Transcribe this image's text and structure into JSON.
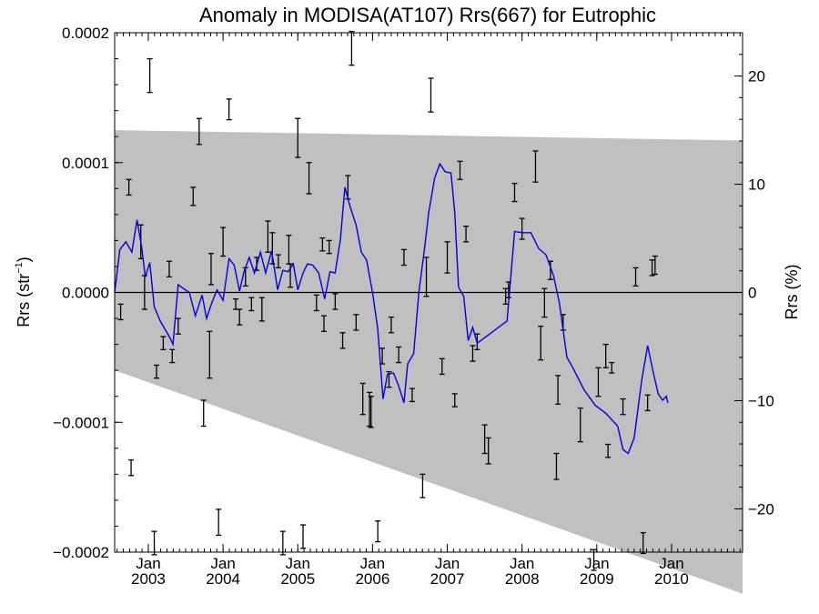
{
  "chart_data": {
    "type": "line",
    "title": "Anomaly in MODISA(AT107) Rrs(667) for Eutrophic",
    "ylabel_left": "Rrs (str⁻¹)",
    "ylabel_right": "Rrs (%)",
    "xlim": [
      2002.55,
      2010.95
    ],
    "ylim_left": [
      -0.0002,
      0.0002
    ],
    "ylim_right": [
      -24,
      24
    ],
    "left_ticks": [
      {
        "value": 0.0002,
        "label": "0.0002"
      },
      {
        "value": 0.0001,
        "label": "0.0001"
      },
      {
        "value": 0.0,
        "label": "0.0000"
      },
      {
        "value": -0.0001,
        "label": "−0.0001"
      },
      {
        "value": -0.0002,
        "label": "−0.0002"
      }
    ],
    "right_ticks": [
      {
        "value": 20,
        "label": "20"
      },
      {
        "value": 10,
        "label": "10"
      },
      {
        "value": 0,
        "label": "0"
      },
      {
        "value": -10,
        "label": "−10"
      },
      {
        "value": -20,
        "label": "−20"
      }
    ],
    "x_ticks": [
      {
        "value": 2003.0,
        "month": "Jan",
        "year": "2003"
      },
      {
        "value": 2004.0,
        "month": "Jan",
        "year": "2004"
      },
      {
        "value": 2005.0,
        "month": "Jan",
        "year": "2005"
      },
      {
        "value": 2006.0,
        "month": "Jan",
        "year": "2006"
      },
      {
        "value": 2007.0,
        "month": "Jan",
        "year": "2007"
      },
      {
        "value": 2008.0,
        "month": "Jan",
        "year": "2008"
      },
      {
        "value": 2009.0,
        "month": "Jan",
        "year": "2009"
      },
      {
        "value": 2010.0,
        "month": "Jan",
        "year": "2010"
      }
    ],
    "band": {
      "upper": [
        [
          2002.55,
          0.000125
        ],
        [
          2010.95,
          0.000117
        ]
      ],
      "lower": [
        [
          2002.55,
          -6e-05
        ],
        [
          2010.95,
          -0.000232
        ]
      ],
      "color": "#c0c0c0"
    },
    "line_color": "#0000dd",
    "line": [
      [
        2002.55,
        0.0
      ],
      [
        2002.62,
        3.3e-05
      ],
      [
        2002.7,
        3.9e-05
      ],
      [
        2002.78,
        3.1e-05
      ],
      [
        2002.85,
        5.6e-05
      ],
      [
        2002.91,
        3.5e-05
      ],
      [
        2002.96,
        1.2e-05
      ],
      [
        2003.02,
        2.3e-05
      ],
      [
        2003.08,
        -1.1e-05
      ],
      [
        2003.16,
        -2.2e-05
      ],
      [
        2003.22,
        -2.8e-05
      ],
      [
        2003.28,
        -3.4e-05
      ],
      [
        2003.33,
        -4e-05
      ],
      [
        2003.4,
        6e-06
      ],
      [
        2003.47,
        3e-06
      ],
      [
        2003.55,
        0.0
      ],
      [
        2003.63,
        -1.8e-05
      ],
      [
        2003.72,
        -2e-06
      ],
      [
        2003.78,
        -2e-05
      ],
      [
        2003.85,
        -8e-06
      ],
      [
        2003.92,
        2e-06
      ],
      [
        2004.0,
        -6e-06
      ],
      [
        2004.08,
        2.6e-05
      ],
      [
        2004.15,
        2.1e-05
      ],
      [
        2004.22,
        1e-06
      ],
      [
        2004.28,
        1.6e-05
      ],
      [
        2004.35,
        2.7e-05
      ],
      [
        2004.42,
        1.5e-05
      ],
      [
        2004.5,
        3.1e-05
      ],
      [
        2004.57,
        1.5e-05
      ],
      [
        2004.65,
        3.2e-05
      ],
      [
        2004.73,
        2e-06
      ],
      [
        2004.8,
        1.7e-05
      ],
      [
        2004.87,
        1.6e-05
      ],
      [
        2004.94,
        2.2e-05
      ],
      [
        2005.0,
        2e-06
      ],
      [
        2005.07,
        1.5e-05
      ],
      [
        2005.13,
        2.2e-05
      ],
      [
        2005.2,
        2.1e-05
      ],
      [
        2005.28,
        1.5e-05
      ],
      [
        2005.36,
        -5e-06
      ],
      [
        2005.43,
        1.6e-05
      ],
      [
        2005.5,
        1.5e-05
      ],
      [
        2005.57,
        4.1e-05
      ],
      [
        2005.63,
        8.1e-05
      ],
      [
        2005.7,
        6.6e-05
      ],
      [
        2005.78,
        5.2e-05
      ],
      [
        2005.85,
        3.1e-05
      ],
      [
        2005.92,
        2.5e-05
      ],
      [
        2006.0,
        0.0
      ],
      [
        2006.07,
        -2.8e-05
      ],
      [
        2006.14,
        -8.2e-05
      ],
      [
        2006.2,
        -6.3e-05
      ],
      [
        2006.28,
        -6.2e-05
      ],
      [
        2006.35,
        -7.2e-05
      ],
      [
        2006.42,
        -8.5e-05
      ],
      [
        2006.47,
        -5.5e-05
      ],
      [
        2006.55,
        -4.7e-05
      ],
      [
        2006.62,
        0.0
      ],
      [
        2006.7,
        3.6e-05
      ],
      [
        2006.75,
        6.1e-05
      ],
      [
        2006.83,
        8.8e-05
      ],
      [
        2006.9,
        9.9e-05
      ],
      [
        2006.97,
        9.3e-05
      ],
      [
        2007.05,
        9.2e-05
      ],
      [
        2007.1,
        6.2e-05
      ],
      [
        2007.15,
        4e-06
      ],
      [
        2007.22,
        -3e-06
      ],
      [
        2007.28,
        -3.7e-05
      ],
      [
        2007.34,
        -2.7e-05
      ],
      [
        2007.4,
        -3.9e-05
      ],
      [
        2007.45,
        -3.7e-05
      ],
      [
        2007.8,
        -2.2e-05
      ],
      [
        2007.9,
        4.7e-05
      ],
      [
        2008.0,
        4.6e-05
      ],
      [
        2008.12,
        4.6e-05
      ],
      [
        2008.22,
        3.4e-05
      ],
      [
        2008.32,
        2.9e-05
      ],
      [
        2008.42,
        1.3e-05
      ],
      [
        2008.5,
        -8e-06
      ],
      [
        2008.6,
        -5e-05
      ],
      [
        2008.68,
        -5.8e-05
      ],
      [
        2008.83,
        -7.5e-05
      ],
      [
        2008.98,
        -8.7e-05
      ],
      [
        2009.12,
        -9.3e-05
      ],
      [
        2009.28,
        -0.000103
      ],
      [
        2009.35,
        -0.000121
      ],
      [
        2009.42,
        -0.000124
      ],
      [
        2009.5,
        -0.000112
      ],
      [
        2009.6,
        -6.8e-05
      ],
      [
        2009.68,
        -4.1e-05
      ],
      [
        2009.75,
        -6e-05
      ],
      [
        2009.82,
        -7.8e-05
      ],
      [
        2009.88,
        -8.3e-05
      ],
      [
        2009.93,
        -8e-05
      ],
      [
        2009.95,
        -8.5e-05
      ]
    ],
    "error_bars": [
      [
        2002.63,
        -1.5e-05,
        6e-06
      ],
      [
        2002.74,
        8.1e-05,
        6e-06
      ],
      [
        2002.77,
        -0.000135,
        6e-06
      ],
      [
        2002.9,
        3.9e-05,
        1.3e-05
      ],
      [
        2002.95,
        0.0,
        1.3e-05
      ],
      [
        2003.02,
        0.000167,
        1.3e-05
      ],
      [
        2003.08,
        -0.000193,
        9e-06
      ],
      [
        2003.11,
        -6.1e-05,
        5e-06
      ],
      [
        2003.2,
        -3.9e-05,
        5e-06
      ],
      [
        2003.28,
        1.8e-05,
        6e-06
      ],
      [
        2003.32,
        -4.9e-05,
        5e-06
      ],
      [
        2003.4,
        -2.6e-05,
        6e-06
      ],
      [
        2003.6,
        7.4e-05,
        7e-06
      ],
      [
        2003.68,
        0.000124,
        1e-05
      ],
      [
        2003.74,
        -9.3e-05,
        1e-05
      ],
      [
        2003.82,
        -4.8e-05,
        1.8e-05
      ],
      [
        2003.84,
        1.8e-05,
        1.2e-05
      ],
      [
        2003.94,
        -0.000177,
        1e-05
      ],
      [
        2004.0,
        3.9e-05,
        1.1e-05
      ],
      [
        2004.08,
        0.000141,
        8e-06
      ],
      [
        2004.17,
        -9e-06,
        4e-06
      ],
      [
        2004.22,
        -1.9e-05,
        6e-06
      ],
      [
        2004.3,
        1.2e-05,
        7e-06
      ],
      [
        2004.38,
        -9e-06,
        5e-06
      ],
      [
        2004.45,
        2.2e-05,
        5e-06
      ],
      [
        2004.52,
        -1.3e-05,
        9e-06
      ],
      [
        2004.6,
        4.3e-05,
        1.2e-05
      ],
      [
        2004.66,
        3.4e-05,
        1.2e-05
      ],
      [
        2004.74,
        2.4e-05,
        5e-06
      ],
      [
        2004.8,
        -0.000193,
        9e-06
      ],
      [
        2004.88,
        3.3e-05,
        1.1e-05
      ],
      [
        2004.9,
        1.3e-05,
        9e-06
      ],
      [
        2005.0,
        0.000119,
        1.5e-05
      ],
      [
        2005.07,
        -0.000188,
        9e-06
      ],
      [
        2005.15,
        8.8e-05,
        1.2e-05
      ],
      [
        2005.25,
        -8e-06,
        6e-06
      ],
      [
        2005.33,
        3.7e-05,
        5e-06
      ],
      [
        2005.35,
        -2.4e-05,
        6e-06
      ],
      [
        2005.42,
        3.5e-05,
        5e-06
      ],
      [
        2005.5,
        -7e-06,
        6e-06
      ],
      [
        2005.6,
        -3.7e-05,
        6e-06
      ],
      [
        2005.67,
        8.1e-05,
        9e-06
      ],
      [
        2005.72,
        0.000188,
        1.3e-05
      ],
      [
        2005.78,
        -2.3e-05,
        6e-06
      ],
      [
        2005.87,
        -8.2e-05,
        1.2e-05
      ],
      [
        2005.96,
        -9e-05,
        1.3e-05
      ],
      [
        2005.98,
        -9.2e-05,
        1.2e-05
      ],
      [
        2006.07,
        -0.000184,
        8e-06
      ],
      [
        2006.13,
        -4.9e-05,
        6e-06
      ],
      [
        2006.22,
        -6.7e-05,
        6e-06
      ],
      [
        2006.25,
        -2.5e-05,
        6e-06
      ],
      [
        2006.35,
        -4.8e-05,
        6e-06
      ],
      [
        2006.42,
        2.7e-05,
        6e-06
      ],
      [
        2006.53,
        -7.9e-05,
        5e-06
      ],
      [
        2006.67,
        -0.000149,
        9e-06
      ],
      [
        2006.72,
        1.2e-05,
        1.5e-05
      ],
      [
        2006.78,
        0.000152,
        1.3e-05
      ],
      [
        2006.93,
        -5.7e-05,
        6e-06
      ],
      [
        2007.0,
        2.7e-05,
        1.2e-05
      ],
      [
        2007.1,
        -8.3e-05,
        5e-06
      ],
      [
        2007.17,
        9.4e-05,
        7e-06
      ],
      [
        2007.25,
        4.5e-05,
        6e-06
      ],
      [
        2007.34,
        -4.7e-05,
        6e-06
      ],
      [
        2007.4,
        -3.8e-05,
        6e-06
      ],
      [
        2007.5,
        -0.000113,
        1.1e-05
      ],
      [
        2007.55,
        -0.000122,
        1e-05
      ],
      [
        2007.78,
        -3e-06,
        6e-06
      ],
      [
        2007.82,
        2e-06,
        6e-06
      ],
      [
        2007.9,
        7.7e-05,
        7e-06
      ],
      [
        2008.0,
        4.9e-05,
        8e-06
      ],
      [
        2008.18,
        9.7e-05,
        1.2e-05
      ],
      [
        2008.25,
        -3.9e-05,
        1.3e-05
      ],
      [
        2008.3,
        -8e-06,
        1.1e-05
      ],
      [
        2008.38,
        1.7e-05,
        7e-06
      ],
      [
        2008.46,
        -0.000134,
        1e-05
      ],
      [
        2008.48,
        -7.5e-05,
        1.1e-05
      ],
      [
        2008.55,
        -2.3e-05,
        6e-06
      ],
      [
        2008.78,
        -0.000102,
        1.3e-05
      ],
      [
        2008.96,
        -0.000206,
        8e-06
      ],
      [
        2009.02,
        -6.9e-05,
        1.1e-05
      ],
      [
        2009.12,
        -4.9e-05,
        9e-06
      ],
      [
        2009.15,
        -0.000122,
        5e-06
      ],
      [
        2009.2,
        -5.8e-05,
        4e-06
      ],
      [
        2009.35,
        -8.8e-05,
        6e-06
      ],
      [
        2009.52,
        1.2e-05,
        7e-06
      ],
      [
        2009.62,
        -0.000193,
        8e-06
      ],
      [
        2009.68,
        -8.5e-05,
        6e-06
      ],
      [
        2009.74,
        1.9e-05,
        6e-06
      ],
      [
        2009.78,
        2.1e-05,
        7e-06
      ]
    ]
  },
  "page": {
    "title": "Anomaly in MODISA(AT107) Rrs(667) for Eutrophic",
    "ylabel_left_main": "Rrs (str",
    "ylabel_left_sup": "−1",
    "ylabel_left_end": ")",
    "ylabel_right": "Rrs (%)"
  }
}
